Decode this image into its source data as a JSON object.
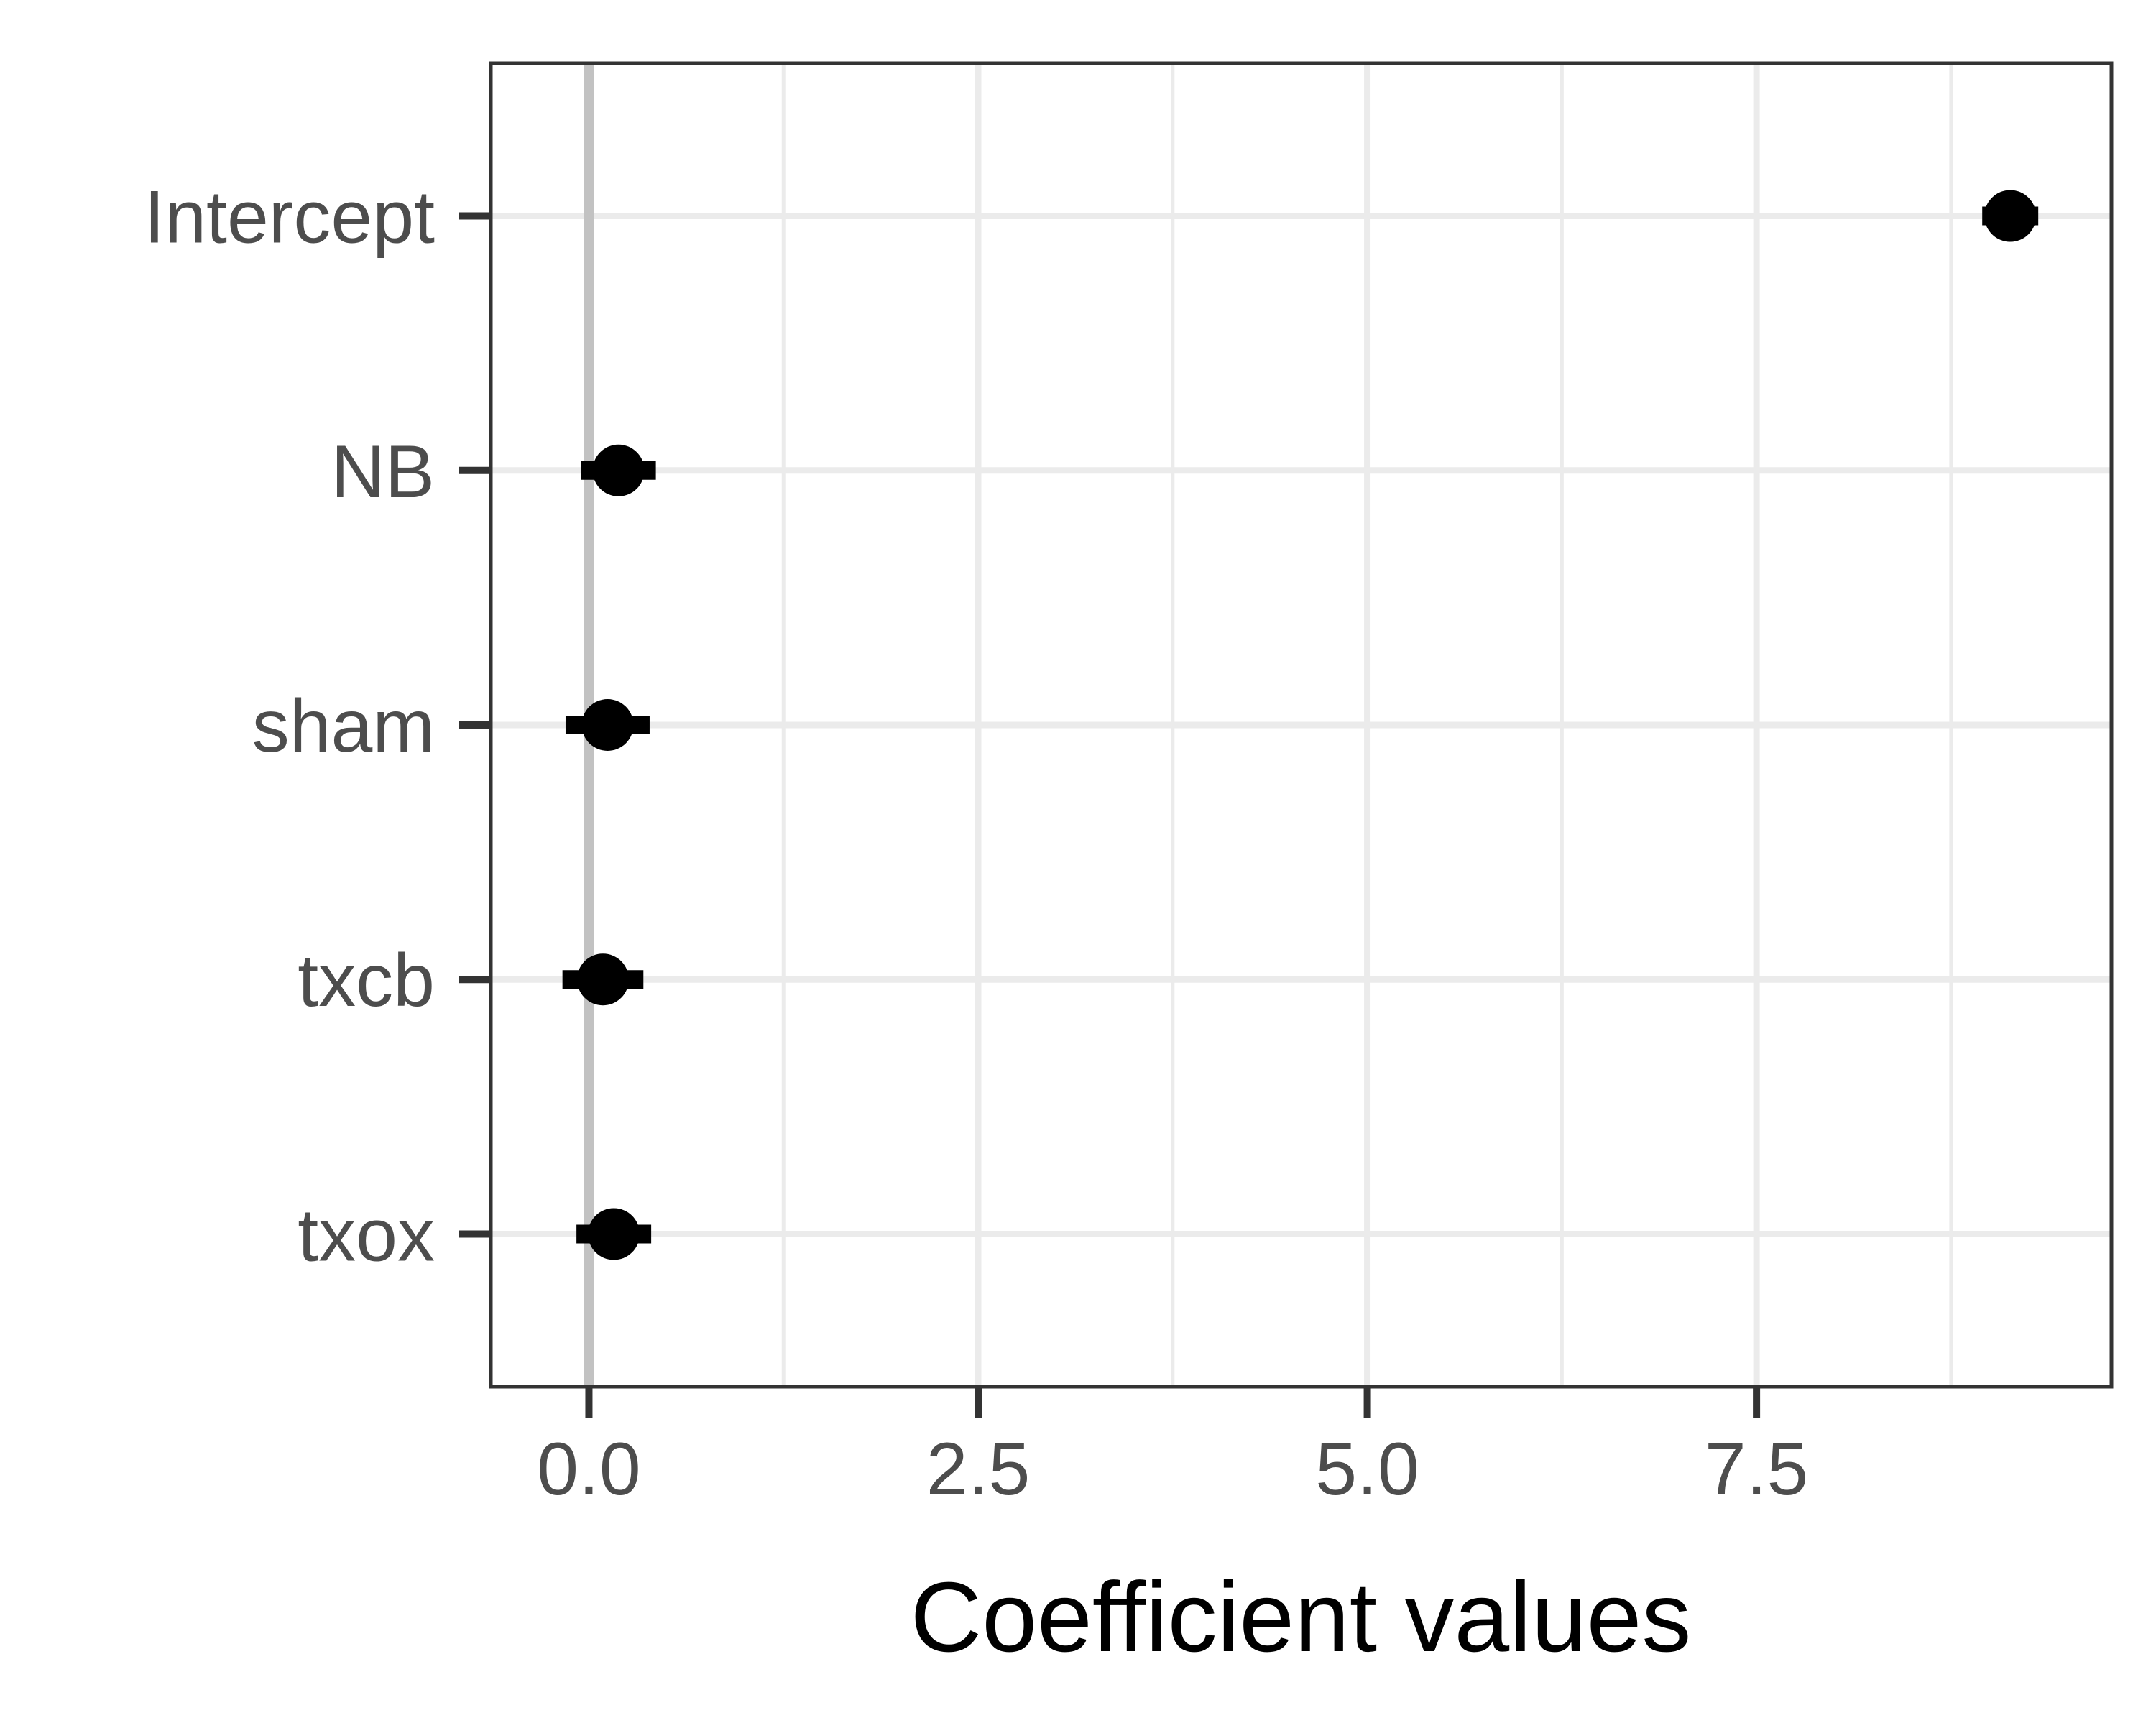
{
  "chart_data": {
    "type": "scatter",
    "title": "",
    "xlabel": "Coefficient values",
    "ylabel": "",
    "categories": [
      "Intercept",
      "NB",
      "sham",
      "txcb",
      "txox"
    ],
    "series": [
      {
        "estimates": [
          9.13,
          0.19,
          0.12,
          0.09,
          0.16
        ],
        "ci_low": [
          8.95,
          -0.05,
          -0.15,
          -0.17,
          -0.08
        ],
        "ci_high": [
          9.31,
          0.43,
          0.39,
          0.35,
          0.4
        ]
      }
    ],
    "xlim": [
      -0.63,
      9.78
    ],
    "x_ticks": [
      "0.0",
      "2.5",
      "5.0",
      "7.5"
    ],
    "x_tick_values": [
      0,
      2.5,
      5,
      7.5
    ],
    "reference_line": 0,
    "grid": true,
    "legend": "none",
    "colors": {
      "point": "#000000",
      "grid": "#ebebeb",
      "reference_line": "#c2c2c2",
      "panel_border": "#333333",
      "tick_text": "#4d4d4d"
    }
  }
}
